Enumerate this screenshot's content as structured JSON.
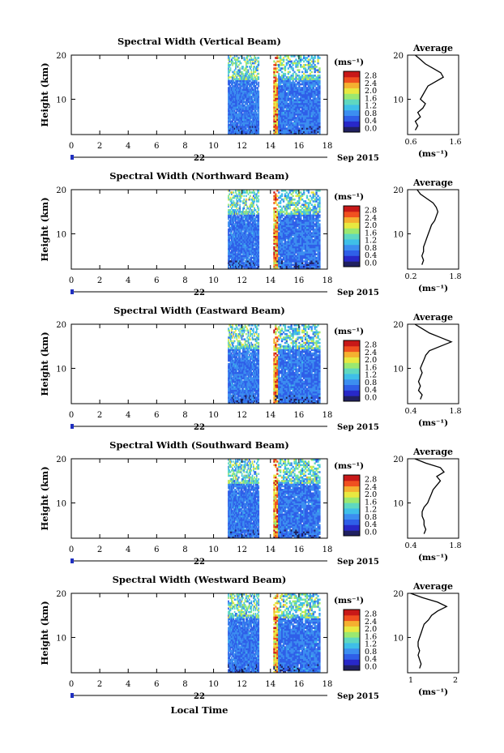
{
  "figure": {
    "xlabel": "Local Time",
    "colorbar_unit": "(ms⁻¹)",
    "colorbar_ticks": [
      "0.0",
      "0.4",
      "0.8",
      "1.2",
      "1.6",
      "2.0",
      "2.4",
      "2.8"
    ],
    "y_ticks": [
      "20",
      "10"
    ],
    "ylabel": "Height (km)",
    "x_ticks": [
      "0",
      "2",
      "4",
      "6",
      "8",
      "10",
      "12",
      "14",
      "16",
      "18"
    ],
    "date_day": "22",
    "date_month_year": "Sep 2015",
    "avg_title": "Average",
    "avg_unit": "(ms⁻¹)",
    "colormap": [
      "#202060",
      "#2828c8",
      "#2f5fe8",
      "#3c8ef0",
      "#3fbfe8",
      "#5fd8c0",
      "#9be870",
      "#e8e840",
      "#f5b030",
      "#f05020",
      "#c81818"
    ]
  },
  "chart_data": [
    {
      "type": "heatmap",
      "title": "Spectral Width (Vertical Beam)",
      "xlabel": "Local Time",
      "ylabel": "Height (km)",
      "xlim": [
        0,
        18
      ],
      "ylim": [
        2,
        20
      ],
      "data_x_ranges": [
        [
          11,
          13.2
        ],
        [
          14.2,
          17.5
        ]
      ],
      "clim": [
        0,
        3.0
      ],
      "avg_profile": {
        "title": "Average",
        "xlim": [
          0.6,
          1.6
        ],
        "xticks": [
          "0.6",
          "1.6"
        ],
        "ylim": [
          2,
          20
        ],
        "height": [
          20,
          19,
          18,
          17,
          16,
          15,
          14,
          13,
          12,
          11,
          10,
          9,
          8,
          7,
          6,
          5,
          4,
          3
        ],
        "value": [
          0.75,
          0.85,
          0.95,
          1.1,
          1.25,
          1.3,
          1.15,
          1.0,
          0.95,
          0.9,
          0.85,
          0.95,
          0.9,
          0.8,
          0.85,
          0.75,
          0.8,
          0.75
        ]
      }
    },
    {
      "type": "heatmap",
      "title": "Spectral Width (Northward Beam)",
      "xlabel": "Local Time",
      "ylabel": "Height (km)",
      "xlim": [
        0,
        18
      ],
      "ylim": [
        2,
        20
      ],
      "data_x_ranges": [
        [
          11,
          13.2
        ],
        [
          14.2,
          17.5
        ]
      ],
      "clim": [
        0,
        3.0
      ],
      "avg_profile": {
        "title": "Average",
        "xlim": [
          0.2,
          1.8
        ],
        "xticks": [
          "0.2",
          "1.8"
        ],
        "ylim": [
          2,
          20
        ],
        "height": [
          20,
          19,
          18,
          17,
          16,
          15,
          14,
          13,
          12,
          11,
          10,
          9,
          8,
          7,
          6,
          5,
          4,
          3
        ],
        "value": [
          0.5,
          0.6,
          0.8,
          1.0,
          1.1,
          1.15,
          1.1,
          1.05,
          0.95,
          0.9,
          0.85,
          0.8,
          0.75,
          0.7,
          0.7,
          0.65,
          0.7,
          0.65
        ]
      }
    },
    {
      "type": "heatmap",
      "title": "Spectral Width (Eastward Beam)",
      "xlabel": "Local Time",
      "ylabel": "Height (km)",
      "xlim": [
        0,
        18
      ],
      "ylim": [
        2,
        20
      ],
      "data_x_ranges": [
        [
          11,
          13.2
        ],
        [
          14.2,
          17.5
        ]
      ],
      "clim": [
        0,
        3.0
      ],
      "avg_profile": {
        "title": "Average",
        "xlim": [
          0.4,
          1.8
        ],
        "xticks": [
          "0.4",
          "1.8"
        ],
        "ylim": [
          2,
          20
        ],
        "height": [
          20,
          19,
          18,
          17,
          16,
          15,
          14,
          13,
          12,
          11,
          10,
          9,
          8,
          7,
          6,
          5,
          4,
          3
        ],
        "value": [
          0.6,
          0.8,
          1.0,
          1.3,
          1.6,
          1.3,
          1.0,
          0.9,
          0.85,
          0.8,
          0.75,
          0.8,
          0.75,
          0.7,
          0.75,
          0.7,
          0.8,
          0.75
        ]
      }
    },
    {
      "type": "heatmap",
      "title": "Spectral Width (Southward Beam)",
      "xlabel": "Local Time",
      "ylabel": "Height (km)",
      "xlim": [
        0,
        18
      ],
      "ylim": [
        2,
        20
      ],
      "data_x_ranges": [
        [
          11,
          13.2
        ],
        [
          14.2,
          17.5
        ]
      ],
      "clim": [
        0,
        3.0
      ],
      "avg_profile": {
        "title": "Average",
        "xlim": [
          0.4,
          1.8
        ],
        "xticks": [
          "0.4",
          "1.8"
        ],
        "ylim": [
          2,
          20
        ],
        "height": [
          20,
          19,
          18,
          17,
          16,
          15,
          14,
          13,
          12,
          11,
          10,
          9,
          8,
          7,
          6,
          5,
          4,
          3
        ],
        "value": [
          0.6,
          0.9,
          1.3,
          1.4,
          1.2,
          1.3,
          1.2,
          1.1,
          1.05,
          1.0,
          0.95,
          0.85,
          0.8,
          0.8,
          0.85,
          0.85,
          0.9,
          0.85
        ]
      }
    },
    {
      "type": "heatmap",
      "title": "Spectral Width (Westward Beam)",
      "xlabel": "Local Time",
      "ylabel": "Height (km)",
      "xlim": [
        0,
        18
      ],
      "ylim": [
        2,
        20
      ],
      "data_x_ranges": [
        [
          11,
          13.2
        ],
        [
          14.2,
          17.5
        ]
      ],
      "clim": [
        0,
        3.0
      ],
      "avg_profile": {
        "title": "Average",
        "xlim": [
          0.5,
          2.2
        ],
        "xticks": [
          "1",
          "2"
        ],
        "ylim": [
          2,
          20
        ],
        "height": [
          20,
          19,
          18,
          17,
          16,
          15,
          14,
          13,
          12,
          11,
          10,
          9,
          8,
          7,
          6,
          5,
          4,
          3
        ],
        "value": [
          0.6,
          1.0,
          1.5,
          1.8,
          1.5,
          1.3,
          1.2,
          1.05,
          1.0,
          0.95,
          0.9,
          0.85,
          0.85,
          0.9,
          0.85,
          0.9,
          0.95,
          0.9
        ]
      }
    }
  ]
}
